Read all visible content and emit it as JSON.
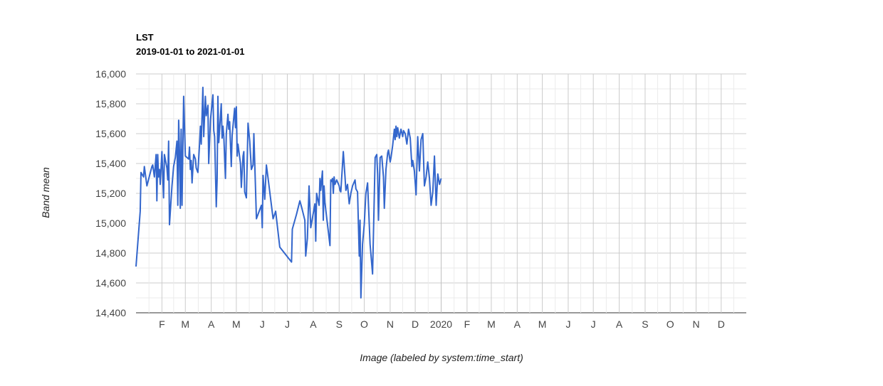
{
  "chart_data": {
    "type": "line",
    "title": "LST",
    "subtitle": "2019-01-01 to 2021-01-01",
    "xlabel": "Image (labeled by system:time_start)",
    "ylabel": "Band mean",
    "ylim": [
      14400,
      16000
    ],
    "xlim": [
      "2019-01-01",
      "2020-12-31"
    ],
    "yticks": [
      "14,400",
      "14,600",
      "14,800",
      "15,000",
      "15,200",
      "15,400",
      "15,600",
      "15,800",
      "16,000"
    ],
    "xticks": [
      {
        "date": "2019-02-01",
        "label": "F"
      },
      {
        "date": "2019-03-01",
        "label": "M"
      },
      {
        "date": "2019-04-01",
        "label": "A"
      },
      {
        "date": "2019-05-01",
        "label": "M"
      },
      {
        "date": "2019-06-01",
        "label": "J"
      },
      {
        "date": "2019-07-01",
        "label": "J"
      },
      {
        "date": "2019-08-01",
        "label": "A"
      },
      {
        "date": "2019-09-01",
        "label": "S"
      },
      {
        "date": "2019-10-01",
        "label": "O"
      },
      {
        "date": "2019-11-01",
        "label": "N"
      },
      {
        "date": "2019-12-01",
        "label": "D"
      },
      {
        "date": "2020-01-01",
        "label": "2020"
      },
      {
        "date": "2020-02-01",
        "label": "F"
      },
      {
        "date": "2020-03-01",
        "label": "M"
      },
      {
        "date": "2020-04-01",
        "label": "A"
      },
      {
        "date": "2020-05-01",
        "label": "M"
      },
      {
        "date": "2020-06-01",
        "label": "J"
      },
      {
        "date": "2020-07-01",
        "label": "J"
      },
      {
        "date": "2020-08-01",
        "label": "A"
      },
      {
        "date": "2020-09-01",
        "label": "S"
      },
      {
        "date": "2020-10-01",
        "label": "O"
      },
      {
        "date": "2020-11-01",
        "label": "N"
      },
      {
        "date": "2020-12-01",
        "label": "D"
      }
    ],
    "grid": true,
    "legend": "none",
    "series": [
      {
        "color": "#3366cc",
        "points": [
          [
            "2019-01-01",
            14710
          ],
          [
            "2019-01-06",
            15080
          ],
          [
            "2019-01-07",
            15340
          ],
          [
            "2019-01-10",
            15310
          ],
          [
            "2019-01-11",
            15380
          ],
          [
            "2019-01-14",
            15250
          ],
          [
            "2019-01-20",
            15380
          ],
          [
            "2019-01-21",
            15390
          ],
          [
            "2019-01-23",
            15310
          ],
          [
            "2019-01-25",
            15460
          ],
          [
            "2019-01-26",
            15150
          ],
          [
            "2019-01-27",
            15460
          ],
          [
            "2019-01-28",
            15310
          ],
          [
            "2019-01-29",
            15360
          ],
          [
            "2019-01-30",
            15260
          ],
          [
            "2019-02-01",
            15480
          ],
          [
            "2019-02-03",
            15170
          ],
          [
            "2019-02-04",
            15460
          ],
          [
            "2019-02-07",
            15370
          ],
          [
            "2019-02-08",
            15290
          ],
          [
            "2019-02-09",
            15550
          ],
          [
            "2019-02-10",
            14990
          ],
          [
            "2019-02-13",
            15250
          ],
          [
            "2019-02-15",
            15380
          ],
          [
            "2019-02-17",
            15440
          ],
          [
            "2019-02-19",
            15550
          ],
          [
            "2019-02-20",
            15120
          ],
          [
            "2019-02-21",
            15690
          ],
          [
            "2019-02-22",
            15490
          ],
          [
            "2019-02-23",
            15100
          ],
          [
            "2019-02-24",
            15630
          ],
          [
            "2019-02-25",
            15120
          ],
          [
            "2019-02-27",
            15850
          ],
          [
            "2019-03-01",
            15450
          ],
          [
            "2019-03-05",
            15430
          ],
          [
            "2019-03-06",
            15510
          ],
          [
            "2019-03-07",
            15360
          ],
          [
            "2019-03-08",
            15420
          ],
          [
            "2019-03-09",
            15270
          ],
          [
            "2019-03-11",
            15460
          ],
          [
            "2019-03-13",
            15430
          ],
          [
            "2019-03-14",
            15370
          ],
          [
            "2019-03-16",
            15340
          ],
          [
            "2019-03-18",
            15530
          ],
          [
            "2019-03-19",
            15650
          ],
          [
            "2019-03-20",
            15530
          ],
          [
            "2019-03-22",
            15910
          ],
          [
            "2019-03-23",
            15580
          ],
          [
            "2019-03-25",
            15850
          ],
          [
            "2019-03-26",
            15720
          ],
          [
            "2019-03-28",
            15790
          ],
          [
            "2019-03-29",
            15400
          ],
          [
            "2019-03-31",
            15690
          ],
          [
            "2019-04-03",
            15860
          ],
          [
            "2019-04-04",
            15620
          ],
          [
            "2019-04-05",
            15580
          ],
          [
            "2019-04-07",
            15110
          ],
          [
            "2019-04-08",
            15290
          ],
          [
            "2019-04-09",
            15850
          ],
          [
            "2019-04-10",
            15540
          ],
          [
            "2019-04-13",
            15800
          ],
          [
            "2019-04-14",
            15570
          ],
          [
            "2019-04-15",
            15650
          ],
          [
            "2019-04-16",
            15580
          ],
          [
            "2019-04-18",
            15300
          ],
          [
            "2019-04-19",
            15600
          ],
          [
            "2019-04-21",
            15730
          ],
          [
            "2019-04-22",
            15630
          ],
          [
            "2019-04-23",
            15680
          ],
          [
            "2019-04-25",
            15380
          ],
          [
            "2019-04-26",
            15590
          ],
          [
            "2019-04-29",
            15770
          ],
          [
            "2019-04-30",
            15640
          ],
          [
            "2019-05-01",
            15780
          ],
          [
            "2019-05-02",
            15450
          ],
          [
            "2019-05-03",
            15530
          ],
          [
            "2019-05-06",
            15400
          ],
          [
            "2019-05-07",
            15240
          ],
          [
            "2019-05-09",
            15450
          ],
          [
            "2019-05-10",
            15480
          ],
          [
            "2019-05-11",
            15210
          ],
          [
            "2019-05-13",
            15170
          ],
          [
            "2019-05-15",
            15670
          ],
          [
            "2019-05-17",
            15550
          ],
          [
            "2019-05-18",
            15460
          ],
          [
            "2019-05-19",
            15360
          ],
          [
            "2019-05-21",
            15390
          ],
          [
            "2019-05-22",
            15600
          ],
          [
            "2019-05-25",
            15030
          ],
          [
            "2019-05-29",
            15090
          ],
          [
            "2019-05-31",
            15120
          ],
          [
            "2019-06-01",
            14970
          ],
          [
            "2019-06-02",
            15320
          ],
          [
            "2019-06-04",
            15160
          ],
          [
            "2019-06-06",
            15390
          ],
          [
            "2019-06-08",
            15300
          ],
          [
            "2019-06-14",
            15030
          ],
          [
            "2019-06-17",
            15080
          ],
          [
            "2019-06-22",
            14840
          ],
          [
            "2019-07-06",
            14740
          ],
          [
            "2019-07-07",
            14960
          ],
          [
            "2019-07-12",
            15060
          ],
          [
            "2019-07-16",
            15150
          ],
          [
            "2019-07-18",
            15110
          ],
          [
            "2019-07-22",
            15020
          ],
          [
            "2019-07-23",
            14780
          ],
          [
            "2019-07-25",
            14900
          ],
          [
            "2019-07-27",
            15250
          ],
          [
            "2019-07-29",
            14970
          ],
          [
            "2019-08-03",
            15130
          ],
          [
            "2019-08-04",
            14880
          ],
          [
            "2019-08-05",
            15200
          ],
          [
            "2019-08-08",
            15120
          ],
          [
            "2019-08-09",
            15300
          ],
          [
            "2019-08-10",
            15220
          ],
          [
            "2019-08-12",
            15350
          ],
          [
            "2019-08-13",
            15020
          ],
          [
            "2019-08-14",
            15250
          ],
          [
            "2019-08-15",
            15140
          ],
          [
            "2019-08-17",
            15040
          ],
          [
            "2019-08-21",
            14850
          ],
          [
            "2019-08-22",
            15290
          ],
          [
            "2019-08-23",
            15280
          ],
          [
            "2019-08-24",
            15300
          ],
          [
            "2019-08-25",
            15200
          ],
          [
            "2019-08-26",
            15310
          ],
          [
            "2019-08-27",
            15260
          ],
          [
            "2019-08-29",
            15290
          ],
          [
            "2019-09-01",
            15250
          ],
          [
            "2019-09-02",
            15220
          ],
          [
            "2019-09-03",
            15210
          ],
          [
            "2019-09-06",
            15480
          ],
          [
            "2019-09-08",
            15310
          ],
          [
            "2019-09-09",
            15220
          ],
          [
            "2019-09-11",
            15260
          ],
          [
            "2019-09-13",
            15130
          ],
          [
            "2019-09-15",
            15200
          ],
          [
            "2019-09-17",
            15250
          ],
          [
            "2019-09-20",
            15290
          ],
          [
            "2019-09-21",
            15230
          ],
          [
            "2019-09-23",
            15210
          ],
          [
            "2019-09-25",
            14780
          ],
          [
            "2019-09-26",
            15020
          ],
          [
            "2019-09-27",
            14500
          ],
          [
            "2019-09-29",
            14860
          ],
          [
            "2019-10-01",
            14990
          ],
          [
            "2019-10-03",
            15200
          ],
          [
            "2019-10-05",
            15270
          ],
          [
            "2019-10-06",
            15130
          ],
          [
            "2019-10-08",
            14860
          ],
          [
            "2019-10-11",
            14660
          ],
          [
            "2019-10-14",
            15440
          ],
          [
            "2019-10-16",
            15460
          ],
          [
            "2019-10-17",
            15330
          ],
          [
            "2019-10-18",
            15020
          ],
          [
            "2019-10-20",
            15440
          ],
          [
            "2019-10-22",
            15450
          ],
          [
            "2019-10-24",
            15310
          ],
          [
            "2019-10-25",
            15100
          ],
          [
            "2019-10-27",
            15360
          ],
          [
            "2019-10-29",
            15470
          ],
          [
            "2019-10-30",
            15490
          ],
          [
            "2019-11-01",
            15410
          ],
          [
            "2019-11-02",
            15440
          ],
          [
            "2019-11-04",
            15520
          ],
          [
            "2019-11-06",
            15630
          ],
          [
            "2019-11-07",
            15560
          ],
          [
            "2019-11-08",
            15650
          ],
          [
            "2019-11-09",
            15580
          ],
          [
            "2019-11-10",
            15640
          ],
          [
            "2019-11-12",
            15570
          ],
          [
            "2019-11-14",
            15630
          ],
          [
            "2019-11-16",
            15580
          ],
          [
            "2019-11-17",
            15620
          ],
          [
            "2019-11-19",
            15600
          ],
          [
            "2019-11-21",
            15530
          ],
          [
            "2019-11-23",
            15630
          ],
          [
            "2019-11-25",
            15570
          ],
          [
            "2019-11-27",
            15380
          ],
          [
            "2019-11-28",
            15420
          ],
          [
            "2019-11-30",
            15350
          ],
          [
            "2019-12-02",
            15190
          ],
          [
            "2019-12-04",
            15580
          ],
          [
            "2019-12-06",
            15350
          ],
          [
            "2019-12-08",
            15560
          ],
          [
            "2019-12-10",
            15600
          ],
          [
            "2019-12-12",
            15250
          ],
          [
            "2019-12-14",
            15310
          ],
          [
            "2019-12-16",
            15410
          ],
          [
            "2019-12-18",
            15300
          ],
          [
            "2019-12-20",
            15120
          ],
          [
            "2019-12-22",
            15210
          ],
          [
            "2019-12-24",
            15450
          ],
          [
            "2019-12-26",
            15120
          ],
          [
            "2019-12-28",
            15330
          ],
          [
            "2019-12-30",
            15260
          ],
          [
            "2020-01-01",
            15300
          ]
        ]
      }
    ]
  }
}
